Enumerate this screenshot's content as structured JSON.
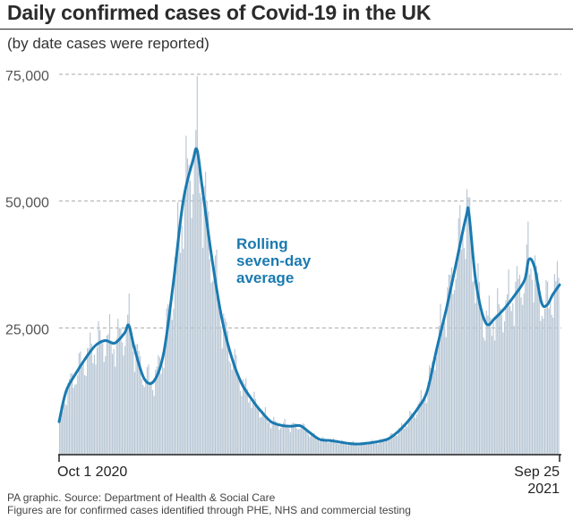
{
  "title": "Daily confirmed cases of Covid-19 in the UK",
  "subtitle": "(by date cases were reported)",
  "chart_data": {
    "type": "bar",
    "overlay_type": "line",
    "ylim": [
      0,
      75000
    ],
    "y_ticks": [
      25000,
      50000,
      75000
    ],
    "y_tick_labels": [
      "25,000",
      "50,000",
      "75,000"
    ],
    "x_start_label": "Oct 1 2020",
    "x_end_label": "Sep 25 2021",
    "x_end_label_lines": [
      "Sep 25",
      "2021"
    ],
    "grid": true,
    "annotation": "Rolling seven-day average",
    "annotation_lines": [
      "Rolling",
      "seven-day",
      "average"
    ],
    "series": [
      {
        "name": "Rolling seven-day average",
        "kind": "line",
        "points": [
          [
            "2020-10-01",
            6500
          ],
          [
            "2020-10-06",
            12500
          ],
          [
            "2020-10-13",
            16000
          ],
          [
            "2020-10-20",
            19000
          ],
          [
            "2020-10-27",
            21500
          ],
          [
            "2020-11-03",
            22500
          ],
          [
            "2020-11-10",
            22000
          ],
          [
            "2020-11-17",
            24000
          ],
          [
            "2020-11-20",
            25500
          ],
          [
            "2020-11-24",
            21000
          ],
          [
            "2020-12-01",
            15000
          ],
          [
            "2020-12-08",
            14500
          ],
          [
            "2020-12-15",
            20000
          ],
          [
            "2020-12-22",
            34000
          ],
          [
            "2020-12-29",
            50000
          ],
          [
            "2021-01-05",
            58000
          ],
          [
            "2021-01-08",
            60000
          ],
          [
            "2021-01-12",
            52000
          ],
          [
            "2021-01-19",
            38000
          ],
          [
            "2021-01-26",
            26500
          ],
          [
            "2021-02-02",
            19000
          ],
          [
            "2021-02-09",
            14000
          ],
          [
            "2021-02-16",
            11000
          ],
          [
            "2021-02-23",
            8500
          ],
          [
            "2021-03-02",
            6500
          ],
          [
            "2021-03-09",
            5800
          ],
          [
            "2021-03-16",
            5600
          ],
          [
            "2021-03-23",
            5700
          ],
          [
            "2021-03-30",
            4300
          ],
          [
            "2021-04-06",
            3000
          ],
          [
            "2021-04-13",
            2800
          ],
          [
            "2021-04-20",
            2500
          ],
          [
            "2021-04-27",
            2200
          ],
          [
            "2021-05-04",
            2100
          ],
          [
            "2021-05-11",
            2300
          ],
          [
            "2021-05-18",
            2600
          ],
          [
            "2021-05-25",
            3100
          ],
          [
            "2021-06-01",
            4500
          ],
          [
            "2021-06-08",
            6500
          ],
          [
            "2021-06-15",
            9000
          ],
          [
            "2021-06-22",
            12500
          ],
          [
            "2021-06-29",
            21000
          ],
          [
            "2021-07-06",
            29000
          ],
          [
            "2021-07-13",
            38000
          ],
          [
            "2021-07-20",
            47000
          ],
          [
            "2021-07-22",
            47500
          ],
          [
            "2021-07-27",
            34000
          ],
          [
            "2021-08-03",
            26000
          ],
          [
            "2021-08-10",
            27000
          ],
          [
            "2021-08-17",
            29000
          ],
          [
            "2021-08-24",
            31500
          ],
          [
            "2021-08-31",
            34500
          ],
          [
            "2021-09-03",
            38500
          ],
          [
            "2021-09-07",
            37000
          ],
          [
            "2021-09-12",
            30000
          ],
          [
            "2021-09-16",
            29500
          ],
          [
            "2021-09-20",
            31500
          ],
          [
            "2021-09-25",
            33500
          ]
        ]
      }
    ]
  },
  "footer_lines": [
    "PA graphic. Source: Department of Health & Social Care",
    "Figures are for confirmed cases identified through PHE, NHS and commercial testing"
  ],
  "colors": {
    "line": "#1a7ab0",
    "bars": "#b7c6d4",
    "grid": "#aaaaaa",
    "axis": "#222222",
    "annotation": "#1a7ab0"
  }
}
